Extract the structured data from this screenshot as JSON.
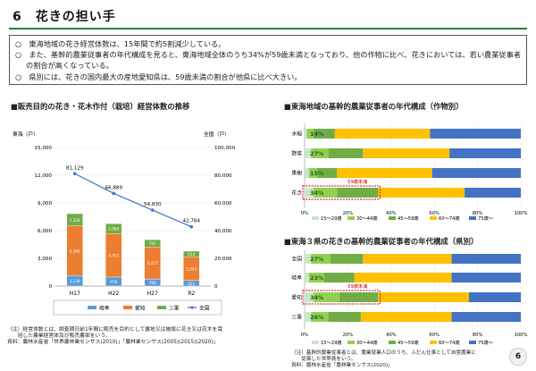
{
  "page": {
    "title": "6　花きの担い手",
    "page_number": "6"
  },
  "summary": [
    "○　東海地域の花き経営体数は、15年間で約5割減少している。",
    "○　また、基幹的農業従事者の年代構成を見ると、東海地域全体のうち34%が59歳未満となっており、他の作物に比べ、花きにおいては、若い農業従事者の割合が高くなっている。",
    "○　県別には、花きの国内最大の産地愛知県は、59歳未満の割合が他県に比べ大きい。"
  ],
  "chart_data": [
    {
      "type": "bar",
      "stacked": true,
      "title": "■販売目的の花き・花木作付（栽培）経営体数の推移",
      "left_axis_label": "東海（戸）",
      "right_axis_label": "全国（戸）",
      "left_ticks": [
        "15,000",
        "12,000",
        "9,000",
        "6,000",
        "3,000",
        "0"
      ],
      "right_ticks": [
        "100,000",
        "80,000",
        "60,000",
        "40,000",
        "20,000",
        "0"
      ],
      "ylim_left": [
        0,
        15000
      ],
      "ylim_right": [
        0,
        100000
      ],
      "categories": [
        "H17",
        "H22",
        "H27",
        "R2"
      ],
      "series": [
        {
          "name": "岐阜",
          "color": "#5b9bd5",
          "values": [
            1138,
            976,
            768,
            621
          ],
          "labels": [
            "1,138",
            "976",
            "768",
            "621"
          ]
        },
        {
          "name": "愛知",
          "color": "#ed7d31",
          "values": [
            5366,
            4702,
            3472,
            2543
          ],
          "labels": [
            "5,366",
            "4,702",
            "3,472",
            "2,543"
          ]
        },
        {
          "name": "三重",
          "color": "#70ad47",
          "values": [
            1334,
            1080,
            781,
            614
          ],
          "labels": [
            "1,334",
            "1,080",
            "781",
            "614"
          ]
        }
      ],
      "line": {
        "name": "全国",
        "color": "#4472c4",
        "axis": "right",
        "values": [
          81129,
          66889,
          54830,
          42784
        ],
        "labels": [
          "81,129",
          "66,889",
          "54,830",
          "42,784"
        ]
      },
      "legend": [
        "岐阜",
        "愛知",
        "三重",
        "全国"
      ]
    },
    {
      "type": "bar",
      "stacked": true,
      "orientation": "horizontal",
      "title": "■東海地域の基幹的農業従事者の年代構成（作物別）",
      "categories": [
        "水稲",
        "野菜",
        "果樹",
        "花き"
      ],
      "xlim": [
        0,
        100
      ],
      "x_ticks": [
        "0%",
        "20%",
        "40%",
        "60%",
        "80%",
        "100%"
      ],
      "age_groups": [
        "15〜29歳",
        "30〜44歳",
        "45〜59歳",
        "60〜74歳",
        "75歳〜"
      ],
      "colors": [
        "#c9e7c9",
        "#92d050",
        "#70ad47",
        "#ffc000",
        "#4472c4"
      ],
      "values": [
        [
          1,
          3,
          10,
          44,
          42
        ],
        [
          3,
          8,
          16,
          40,
          33
        ],
        [
          2,
          4,
          9,
          44,
          41
        ],
        [
          4,
          11,
          19,
          40,
          26
        ]
      ],
      "annotations": [
        "14%",
        "27%",
        "15%",
        "34%"
      ],
      "callout": "59歳未満"
    },
    {
      "type": "bar",
      "stacked": true,
      "orientation": "horizontal",
      "title": "■東海３県の花きの基幹的農業従事者の年代構成（県別）",
      "categories": [
        "全国",
        "岐阜",
        "愛知",
        "三重"
      ],
      "xlim": [
        0,
        100
      ],
      "x_ticks": [
        "0%",
        "20%",
        "40%",
        "60%",
        "80%",
        "100%"
      ],
      "age_groups": [
        "15〜29歳",
        "30〜44歳",
        "45〜59歳",
        "60〜74歳",
        "75歳〜"
      ],
      "colors": [
        "#c9e7c9",
        "#92d050",
        "#70ad47",
        "#ffc000",
        "#4472c4"
      ],
      "values": [
        [
          3,
          9,
          15,
          41,
          32
        ],
        [
          2,
          7,
          14,
          45,
          32
        ],
        [
          4,
          12,
          18,
          42,
          24
        ],
        [
          3,
          8,
          15,
          42,
          32
        ]
      ],
      "annotations": [
        "27%",
        "23%",
        "34%",
        "26%"
      ],
      "callout": "59歳未満"
    }
  ],
  "notes": {
    "left": [
      "（注）経営体数とは、調査期日前1年間に販売を目的として露地又は施設に花き又は花木を栽",
      "　　培した農業経営体及び販売農家をいう。",
      "資料：農林水産省「世界農林業センサス(2010)」「農林業センサス(2005)(2015)(2020)」"
    ],
    "right": [
      "（注）基幹的農業従事者とは、農業就業人口のうち、ふだん仕事として自営農業に",
      "　　従事した世帯員をいう。",
      "資料：農林水産省「農林業センサス(2020)」"
    ]
  }
}
